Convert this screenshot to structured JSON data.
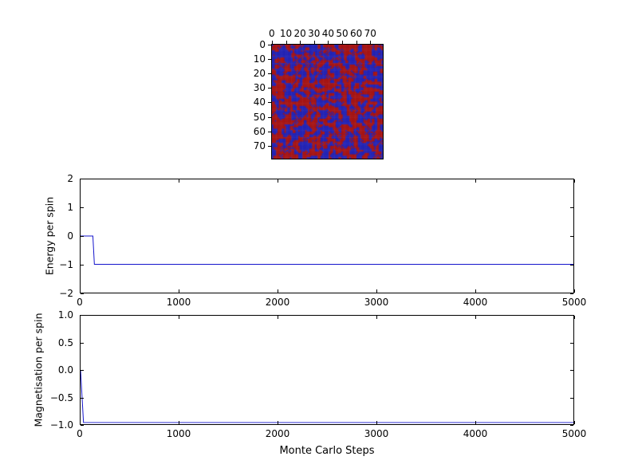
{
  "figure": {
    "background": "#ffffff",
    "frame_color": "#000000",
    "line_color": "#1414cc"
  },
  "chart_data": [
    {
      "type": "heatmap",
      "name": "spin-lattice",
      "grid": 80,
      "xticks": [
        0,
        10,
        20,
        30,
        40,
        50,
        60,
        70
      ],
      "xtick_labels": [
        "0",
        "10",
        "20",
        "30",
        "40",
        "50",
        "60",
        "70"
      ],
      "yticks": [
        0,
        10,
        20,
        30,
        40,
        50,
        60,
        70
      ],
      "ytick_labels": [
        "0",
        "10",
        "20",
        "30",
        "40",
        "50",
        "60",
        "70"
      ],
      "colors": {
        "spin_up": "#a51515",
        "spin_down": "#2424b4"
      },
      "values_note": "random two-state spin field (red/blue)"
    },
    {
      "type": "line",
      "name": "energy",
      "ylabel": "Energy per spin",
      "xlim": [
        0,
        5000
      ],
      "ylim": [
        -2,
        2
      ],
      "xticks": [
        0,
        1000,
        2000,
        3000,
        4000,
        5000
      ],
      "xtick_labels": [
        "0",
        "1000",
        "2000",
        "3000",
        "4000",
        "5000"
      ],
      "yticks": [
        2,
        1,
        0,
        -1,
        -2
      ],
      "ytick_labels": [
        "2",
        "1",
        "0",
        "−1",
        "−2"
      ],
      "points": [
        [
          0,
          0
        ],
        [
          125,
          0
        ],
        [
          140,
          -1
        ],
        [
          5000,
          -1
        ]
      ]
    },
    {
      "type": "line",
      "name": "magnetisation",
      "ylabel": "Magnetisation per spin",
      "xlabel": "Monte Carlo Steps",
      "xlim": [
        0,
        5000
      ],
      "ylim": [
        -1,
        1
      ],
      "xticks": [
        0,
        1000,
        2000,
        3000,
        4000,
        5000
      ],
      "xtick_labels": [
        "0",
        "1000",
        "2000",
        "3000",
        "4000",
        "5000"
      ],
      "yticks": [
        1.0,
        0.5,
        0.0,
        -0.5,
        -1.0
      ],
      "ytick_labels": [
        "1.0",
        "0.5",
        "0.0",
        "−0.5",
        "−1.0"
      ],
      "points": [
        [
          0,
          0
        ],
        [
          30,
          -0.97
        ],
        [
          5000,
          -0.97
        ]
      ]
    }
  ]
}
